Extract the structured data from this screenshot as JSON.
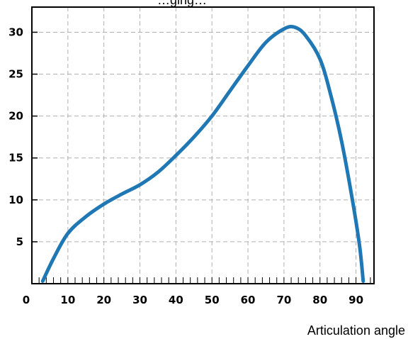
{
  "chart_data": {
    "type": "line",
    "title": "",
    "top_text_fragment": "…ging…",
    "xlabel": "Articulation angle",
    "ylabel": "",
    "xlim": [
      0,
      95
    ],
    "ylim": [
      0,
      33
    ],
    "x_ticks": [
      0,
      10,
      20,
      30,
      40,
      50,
      60,
      70,
      80,
      90
    ],
    "y_ticks": [
      5,
      10,
      15,
      20,
      25,
      30
    ],
    "x_tick_labels": [
      "0",
      "10",
      "20",
      "30",
      "40",
      "50",
      "60",
      "70",
      "80",
      "90"
    ],
    "y_tick_labels": [
      "5",
      "10",
      "15",
      "20",
      "25",
      "30"
    ],
    "grid": true,
    "series": [
      {
        "color": "#1f77b4",
        "points": [
          [
            3,
            0.3
          ],
          [
            6,
            3.0
          ],
          [
            10,
            6.0
          ],
          [
            15,
            8.0
          ],
          [
            20,
            9.5
          ],
          [
            25,
            10.7
          ],
          [
            30,
            11.8
          ],
          [
            35,
            13.3
          ],
          [
            40,
            15.3
          ],
          [
            45,
            17.5
          ],
          [
            50,
            20.0
          ],
          [
            55,
            23.0
          ],
          [
            60,
            26.0
          ],
          [
            65,
            28.8
          ],
          [
            70,
            30.4
          ],
          [
            73,
            30.6
          ],
          [
            76,
            29.6
          ],
          [
            80,
            26.8
          ],
          [
            83,
            22.5
          ],
          [
            86,
            17.0
          ],
          [
            89,
            10.0
          ],
          [
            91,
            4.5
          ],
          [
            92,
            0.3
          ]
        ]
      }
    ]
  }
}
